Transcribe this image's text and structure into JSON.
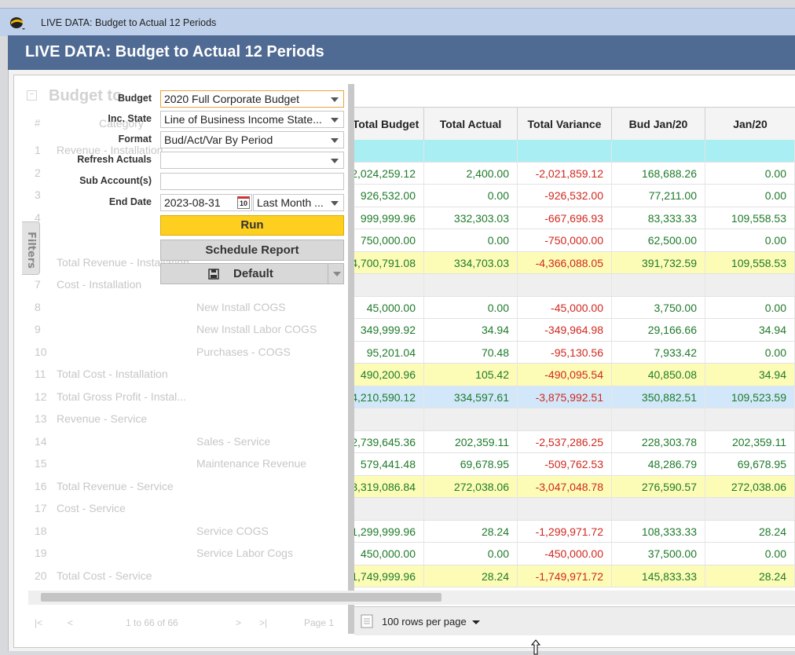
{
  "window": {
    "title": "LIVE DATA: Budget to Actual 12 Periods"
  },
  "header": {
    "title": "LIVE DATA: Budget to Actual 12 Periods"
  },
  "ghost": {
    "title": "Budget to",
    "col_num": "#",
    "col_category": "Category",
    "rows": [
      {
        "n": "1",
        "label": "Revenue - Installation",
        "sub": ""
      },
      {
        "n": "2",
        "label": "",
        "sub": ""
      },
      {
        "n": "3",
        "label": "",
        "sub": ""
      },
      {
        "n": "4",
        "label": "",
        "sub": ""
      },
      {
        "n": "5",
        "label": "",
        "sub": ""
      },
      {
        "n": "6",
        "label": "Total Revenue - Installation",
        "sub": ""
      },
      {
        "n": "7",
        "label": "Cost - Installation",
        "sub": ""
      },
      {
        "n": "8",
        "label": "",
        "sub": "New Install COGS"
      },
      {
        "n": "9",
        "label": "",
        "sub": "New Install Labor COGS"
      },
      {
        "n": "10",
        "label": "",
        "sub": "Purchases - COGS"
      },
      {
        "n": "11",
        "label": "Total Cost - Installation",
        "sub": ""
      },
      {
        "n": "12",
        "label": "Total Gross Profit - Instal...",
        "sub": ""
      },
      {
        "n": "13",
        "label": "Revenue - Service",
        "sub": ""
      },
      {
        "n": "14",
        "label": "",
        "sub": "Sales - Service"
      },
      {
        "n": "15",
        "label": "",
        "sub": "Maintenance Revenue"
      },
      {
        "n": "16",
        "label": "Total Revenue - Service",
        "sub": ""
      },
      {
        "n": "17",
        "label": "Cost - Service",
        "sub": ""
      },
      {
        "n": "18",
        "label": "",
        "sub": "Service COGS"
      },
      {
        "n": "19",
        "label": "",
        "sub": "Service Labor Cogs"
      },
      {
        "n": "20",
        "label": "Total Cost - Service",
        "sub": ""
      }
    ],
    "pager_text": "1 to 66 of 66",
    "page_label": "Page 1"
  },
  "filters": {
    "tab_label": "Filters",
    "budget_label": "Budget",
    "budget_value": "2020 Full Corporate Budget",
    "inc_state_label": "Inc. State",
    "inc_state_value": "Line of Business Income State...",
    "format_label": "Format",
    "format_value": "Bud/Act/Var By Period",
    "refresh_label": "Refresh Actuals",
    "refresh_value": "",
    "subaccount_label": "Sub Account(s)",
    "subaccount_value": "",
    "end_date_label": "End Date",
    "end_date_value": "2023-08-31",
    "calendar_day": "10",
    "period_value": "Last Month ...",
    "run_label": "Run",
    "schedule_label": "Schedule Report",
    "default_label": "Default"
  },
  "grid": {
    "columns": [
      "Total Budget",
      "Total Actual",
      "Total Variance",
      "Bud Jan/20",
      "Jan/20"
    ],
    "rows": [
      {
        "type": "section",
        "bg": "#a8eef3",
        "cells": [
          "",
          "",
          "",
          "",
          ""
        ]
      },
      {
        "type": "data",
        "bg": "#ffffff",
        "cells": [
          "2,024,259.12",
          "2,400.00",
          "-2,021,859.12",
          "168,688.26",
          "0.00"
        ]
      },
      {
        "type": "data",
        "bg": "#ffffff",
        "cells": [
          "926,532.00",
          "0.00",
          "-926,532.00",
          "77,211.00",
          "0.00"
        ]
      },
      {
        "type": "data",
        "bg": "#ffffff",
        "cells": [
          "999,999.96",
          "332,303.03",
          "-667,696.93",
          "83,333.33",
          "109,558.53"
        ]
      },
      {
        "type": "data",
        "bg": "#ffffff",
        "cells": [
          "750,000.00",
          "0.00",
          "-750,000.00",
          "62,500.00",
          "0.00"
        ]
      },
      {
        "type": "total",
        "bg": "#fdfcb6",
        "cells": [
          "4,700,791.08",
          "334,703.03",
          "-4,366,088.05",
          "391,732.59",
          "109,558.53"
        ]
      },
      {
        "type": "section",
        "bg": "#efefef",
        "cells": [
          "",
          "",
          "",
          "",
          ""
        ]
      },
      {
        "type": "data",
        "bg": "#ffffff",
        "cells": [
          "45,000.00",
          "0.00",
          "-45,000.00",
          "3,750.00",
          "0.00"
        ]
      },
      {
        "type": "data",
        "bg": "#ffffff",
        "cells": [
          "349,999.92",
          "34.94",
          "-349,964.98",
          "29,166.66",
          "34.94"
        ]
      },
      {
        "type": "data",
        "bg": "#ffffff",
        "cells": [
          "95,201.04",
          "70.48",
          "-95,130.56",
          "7,933.42",
          "0.00"
        ]
      },
      {
        "type": "total",
        "bg": "#fdfcb6",
        "cells": [
          "490,200.96",
          "105.42",
          "-490,095.54",
          "40,850.08",
          "34.94"
        ]
      },
      {
        "type": "gp",
        "bg": "#d2e8fa",
        "cells": [
          "4,210,590.12",
          "334,597.61",
          "-3,875,992.51",
          "350,882.51",
          "109,523.59"
        ]
      },
      {
        "type": "section",
        "bg": "#efefef",
        "cells": [
          "",
          "",
          "",
          "",
          ""
        ]
      },
      {
        "type": "data",
        "bg": "#ffffff",
        "cells": [
          "2,739,645.36",
          "202,359.11",
          "-2,537,286.25",
          "228,303.78",
          "202,359.11"
        ]
      },
      {
        "type": "data",
        "bg": "#ffffff",
        "cells": [
          "579,441.48",
          "69,678.95",
          "-509,762.53",
          "48,286.79",
          "69,678.95"
        ]
      },
      {
        "type": "total",
        "bg": "#fdfcb6",
        "cells": [
          "3,319,086.84",
          "272,038.06",
          "-3,047,048.78",
          "276,590.57",
          "272,038.06"
        ]
      },
      {
        "type": "section",
        "bg": "#efefef",
        "cells": [
          "",
          "",
          "",
          "",
          ""
        ]
      },
      {
        "type": "data",
        "bg": "#ffffff",
        "cells": [
          "1,299,999.96",
          "28.24",
          "-1,299,971.72",
          "108,333.33",
          "28.24"
        ]
      },
      {
        "type": "data",
        "bg": "#ffffff",
        "cells": [
          "450,000.00",
          "0.00",
          "-450,000.00",
          "37,500.00",
          "0.00"
        ]
      },
      {
        "type": "total",
        "bg": "#fdfcb6",
        "cells": [
          "1,749,999.96",
          "28.24",
          "-1,749,971.72",
          "145,833.33",
          "28.24"
        ]
      }
    ]
  },
  "footer": {
    "rows_per_page": "100 rows per page"
  },
  "colors": {
    "accent": "#ffcf1f",
    "header": "#4f6a93",
    "negative": "#d0281f",
    "positive": "#1e7a2a"
  }
}
